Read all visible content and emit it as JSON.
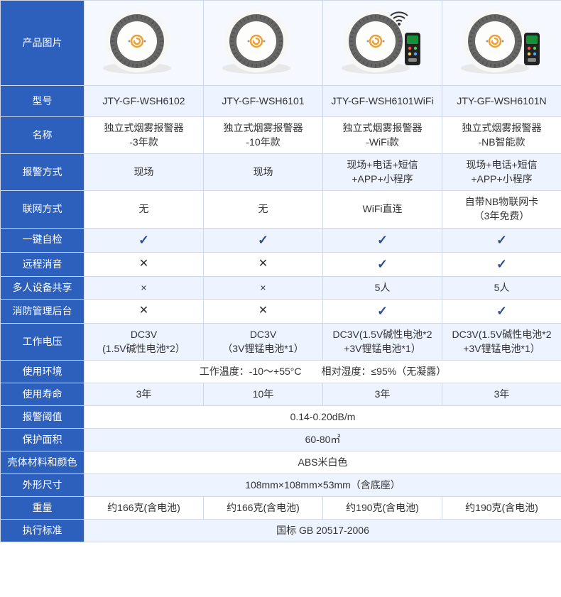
{
  "labels": {
    "image": "产品图片",
    "model": "型号",
    "name": "名称",
    "alarm_mode": "报警方式",
    "network": "联网方式",
    "self_check": "一键自检",
    "remote_mute": "远程消音",
    "multi_share": "多人设备共享",
    "fire_mgmt": "消防管理后台",
    "voltage": "工作电压",
    "environment": "使用环境",
    "lifespan": "使用寿命",
    "threshold": "报警阈值",
    "area": "保护面积",
    "material": "壳体材料和颜色",
    "dimensions": "外形尺寸",
    "weight": "重量",
    "standard": "执行标准"
  },
  "products": [
    {
      "model": "JTY-GF-WSH6102",
      "name": "独立式烟雾报警器\n-3年款",
      "alarm_mode": "现场",
      "network": "无",
      "self_check": true,
      "remote_mute": false,
      "multi_share": "×",
      "fire_mgmt": false,
      "voltage": "DC3V\n(1.5V碱性电池*2）",
      "lifespan": "3年",
      "weight": "约166克(含电池)",
      "has_remote": false,
      "has_wifi": false
    },
    {
      "model": "JTY-GF-WSH6101",
      "name": "独立式烟雾报警器\n-10年款",
      "alarm_mode": "现场",
      "network": "无",
      "self_check": true,
      "remote_mute": false,
      "multi_share": "×",
      "fire_mgmt": false,
      "voltage": "DC3V\n（3V锂锰电池*1）",
      "lifespan": "10年",
      "weight": "约166克(含电池)",
      "has_remote": false,
      "has_wifi": false
    },
    {
      "model": "JTY-GF-WSH6101WiFi",
      "name": "独立式烟雾报警器\n-WiFi款",
      "alarm_mode": "现场+电话+短信\n+APP+小程序",
      "network": "WiFi直连",
      "self_check": true,
      "remote_mute": true,
      "multi_share": "5人",
      "fire_mgmt": true,
      "voltage": "DC3V(1.5V碱性电池*2\n+3V锂锰电池*1）",
      "lifespan": "3年",
      "weight": "约190克(含电池)",
      "has_remote": true,
      "has_wifi": true
    },
    {
      "model": "JTY-GF-WSH6101N",
      "name": "独立式烟雾报警器\n-NB智能款",
      "alarm_mode": "现场+电话+短信\n+APP+小程序",
      "network": "自带NB物联网卡\n（3年免费）",
      "self_check": true,
      "remote_mute": true,
      "multi_share": "5人",
      "fire_mgmt": true,
      "voltage": "DC3V(1.5V碱性电池*2\n+3V锂锰电池*1）",
      "lifespan": "3年",
      "weight": "约190克(含电池)",
      "has_remote": true,
      "has_wifi": false
    }
  ],
  "shared": {
    "environment": "工作温度：-10～+55°C　　相对湿度：≤95%（无凝露）",
    "threshold": "0.14-0.20dB/m",
    "area": "60-80㎡",
    "material": "ABS米白色",
    "dimensions": "108mm×108mm×53mm（含底座）",
    "standard": "国标 GB 20517-2006"
  },
  "colors": {
    "header_bg": "#2d5fbc",
    "header_text": "#ffffff",
    "border": "#d0d8e8",
    "alt_bg": "#edf3ff",
    "text": "#333333",
    "check": "#2b4d8f"
  }
}
